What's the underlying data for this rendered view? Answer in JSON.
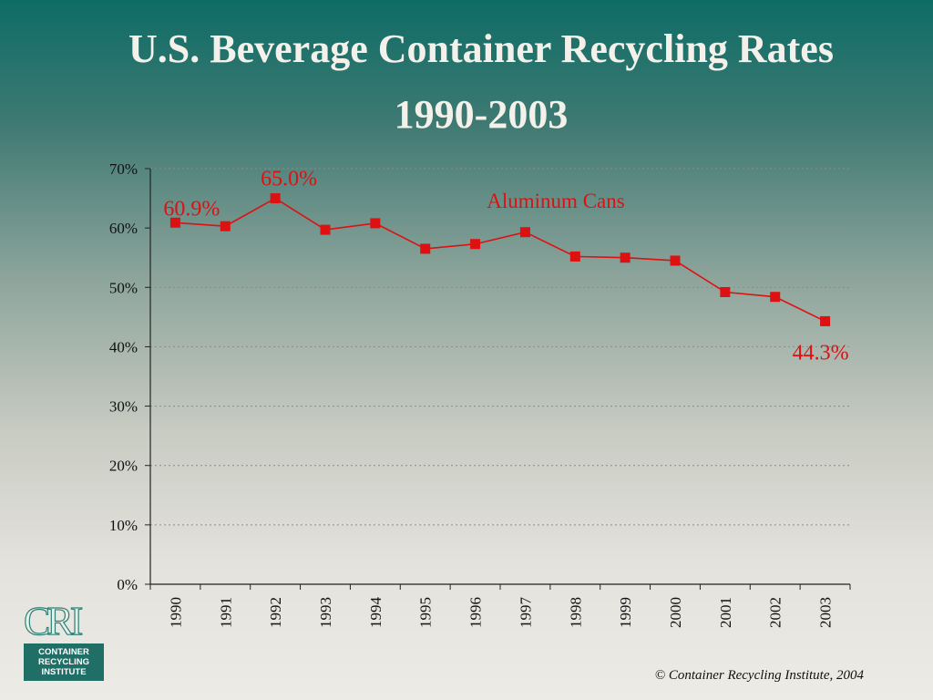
{
  "title": {
    "line1": "U.S. Beverage Container Recycling Rates",
    "line2": "1990-2003"
  },
  "chart_data": {
    "type": "line",
    "title": "U.S. Beverage Container Recycling Rates 1990-2003",
    "xlabel": "",
    "ylabel": "",
    "categories": [
      "1990",
      "1991",
      "1992",
      "1993",
      "1994",
      "1995",
      "1996",
      "1997",
      "1998",
      "1999",
      "2000",
      "2001",
      "2002",
      "2003"
    ],
    "series": [
      {
        "name": "Aluminum Cans",
        "values": [
          60.9,
          60.3,
          65.0,
          59.7,
          60.8,
          56.5,
          57.3,
          59.3,
          55.2,
          55.0,
          54.5,
          49.2,
          48.4,
          44.3
        ],
        "color": "#dd1111"
      }
    ],
    "ylim": [
      0,
      70
    ],
    "yticks": [
      "0%",
      "10%",
      "20%",
      "30%",
      "40%",
      "50%",
      "60%",
      "70%"
    ],
    "grid": true,
    "annotations": [
      {
        "label": "60.9%",
        "index": 0
      },
      {
        "label": "65.0%",
        "index": 2
      },
      {
        "label": "44.3%",
        "index": 13
      }
    ],
    "series_label": "Aluminum Cans"
  },
  "logo": {
    "mark": "CRI",
    "line1": "CONTAINER",
    "line2": "RECYCLING",
    "line3": "INSTITUTE"
  },
  "copyright": "©  Container Recycling Institute, 2004"
}
